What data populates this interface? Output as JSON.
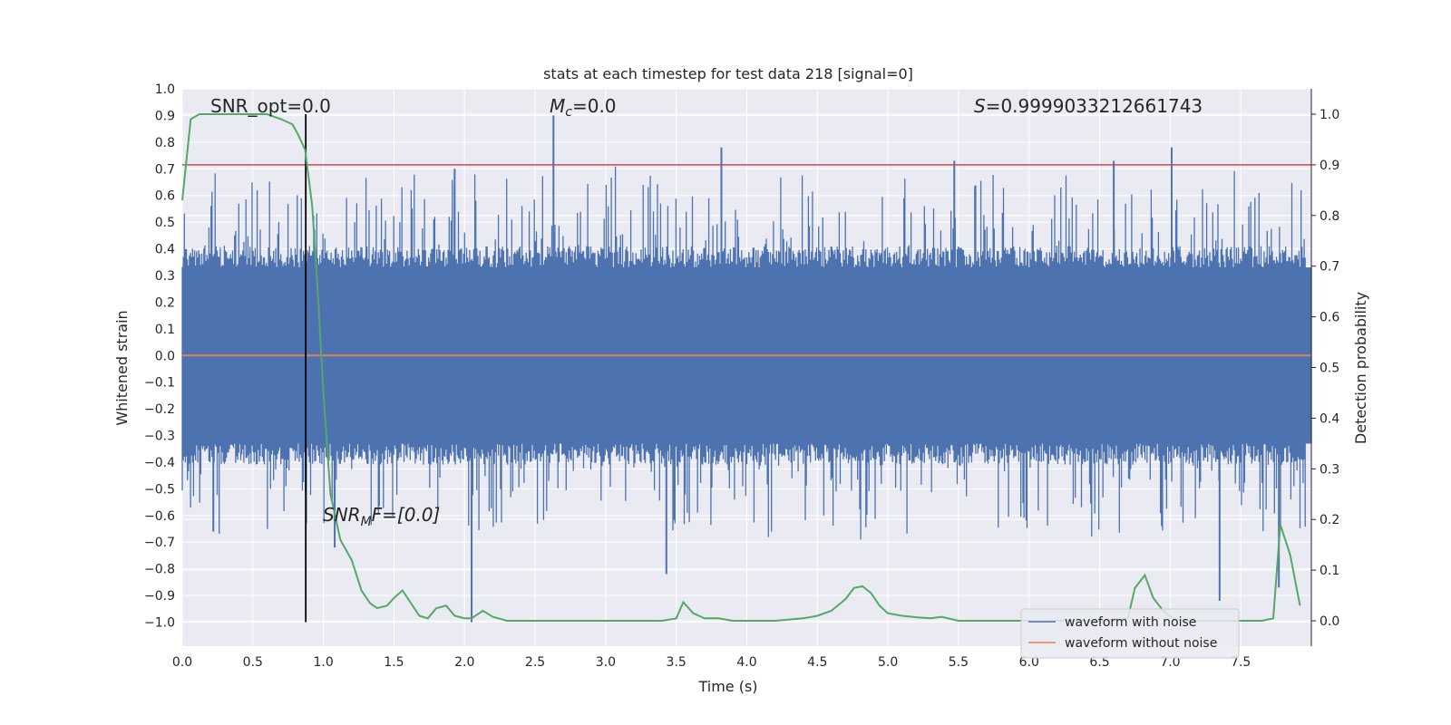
{
  "chart_data": {
    "type": "line",
    "title": "stats at each timestep for test data 218 [signal=0]",
    "xlabel": "Time (s)",
    "ylabel_left": "Whitened strain",
    "ylabel_right": "Detection probability",
    "xlim": [
      0.0,
      8.0
    ],
    "ylim_left": [
      -1.09,
      1.0
    ],
    "ylim_right": [
      -0.05,
      1.05
    ],
    "x_ticks": [
      "0.0",
      "0.5",
      "1.0",
      "1.5",
      "2.0",
      "2.5",
      "3.0",
      "3.5",
      "4.0",
      "4.5",
      "5.0",
      "5.5",
      "6.0",
      "6.5",
      "7.0",
      "7.5"
    ],
    "y_left_ticks": [
      "1.0",
      "0.9",
      "0.8",
      "0.7",
      "0.6",
      "0.5",
      "0.4",
      "0.3",
      "0.2",
      "0.1",
      "0.0",
      "−0.1",
      "−0.2",
      "−0.3",
      "−0.4",
      "−0.5",
      "−0.6",
      "−0.7",
      "−0.8",
      "−0.9",
      "−1.0"
    ],
    "y_right_ticks": [
      "1.0",
      "0.9",
      "0.8",
      "0.7",
      "0.6",
      "0.5",
      "0.4",
      "0.3",
      "0.2",
      "0.1",
      "0.0"
    ],
    "grid": true,
    "legend_position": "bottom-right",
    "colors": {
      "noise": "#4c72b0",
      "clean": "#dd8452",
      "probability": "#55a868",
      "threshold": "#c44e52",
      "marker": "#000000",
      "plot_bg": "#eaeaf2",
      "grid": "#ffffff"
    },
    "annotations": {
      "snr_opt": "SNR_opt=0.0",
      "mc": "=0.0",
      "mc_symbol": "M",
      "mc_sub": "c",
      "score": "=0.9999033212661743",
      "score_symbol": "S",
      "snr_mf_main": "SNR",
      "snr_mf_sub": "M",
      "snr_mf_rest": "F=[0.0]"
    },
    "threshold_probability": 0.9,
    "marker_time": 0.875,
    "series": [
      {
        "name": "waveform with noise",
        "axis": "left",
        "envelope_upper": 0.33,
        "envelope_lower": -0.33,
        "peaks": [
          {
            "x": 2.63,
            "y": 0.9
          },
          {
            "x": 3.82,
            "y": 0.78
          },
          {
            "x": 7.01,
            "y": 0.78
          },
          {
            "x": 1.93,
            "y": 0.7
          },
          {
            "x": 5.47,
            "y": 0.73
          },
          {
            "x": 6.6,
            "y": 0.73
          },
          {
            "x": 2.05,
            "y": -1.0
          },
          {
            "x": 3.43,
            "y": -0.82
          },
          {
            "x": 7.77,
            "y": -0.87
          },
          {
            "x": 7.35,
            "y": -0.92
          },
          {
            "x": 1.08,
            "y": -0.72
          },
          {
            "x": 0.22,
            "y": -0.66
          }
        ]
      },
      {
        "name": "waveform without noise",
        "axis": "left",
        "value": 0.0
      },
      {
        "name": "detection probability",
        "axis": "right",
        "x": [
          0.0,
          0.06,
          0.12,
          0.2,
          0.3,
          0.4,
          0.5,
          0.6,
          0.7,
          0.78,
          0.82,
          0.87,
          0.92,
          0.96,
          1.0,
          1.05,
          1.12,
          1.2,
          1.27,
          1.33,
          1.38,
          1.45,
          1.5,
          1.56,
          1.62,
          1.68,
          1.74,
          1.8,
          1.87,
          1.93,
          2.0,
          2.05,
          2.13,
          2.2,
          2.3,
          2.45,
          2.6,
          2.8,
          3.0,
          3.2,
          3.4,
          3.5,
          3.55,
          3.62,
          3.7,
          3.8,
          3.9,
          4.0,
          4.2,
          4.4,
          4.5,
          4.6,
          4.7,
          4.76,
          4.82,
          4.88,
          4.94,
          5.0,
          5.1,
          5.2,
          5.3,
          5.38,
          5.5,
          5.7,
          6.0,
          6.3,
          6.5,
          6.7,
          6.75,
          6.82,
          6.88,
          6.95,
          7.02,
          7.1,
          7.3,
          7.5,
          7.65,
          7.73,
          7.78,
          7.85,
          7.92
        ],
        "y": [
          0.83,
          0.99,
          1.0,
          1.0,
          1.0,
          1.0,
          1.0,
          1.0,
          0.99,
          0.98,
          0.96,
          0.93,
          0.82,
          0.65,
          0.45,
          0.25,
          0.16,
          0.12,
          0.06,
          0.035,
          0.025,
          0.03,
          0.045,
          0.06,
          0.035,
          0.01,
          0.005,
          0.025,
          0.03,
          0.01,
          0.005,
          0.005,
          0.02,
          0.008,
          0.0,
          0.0,
          0.0,
          0.0,
          0.0,
          0.0,
          0.0,
          0.005,
          0.037,
          0.015,
          0.005,
          0.005,
          0.0,
          0.0,
          0.0,
          0.005,
          0.01,
          0.02,
          0.043,
          0.065,
          0.068,
          0.055,
          0.03,
          0.015,
          0.01,
          0.007,
          0.005,
          0.008,
          0.0,
          0.0,
          0.0,
          0.0,
          0.0,
          0.005,
          0.065,
          0.09,
          0.045,
          0.02,
          0.005,
          0.0,
          0.0,
          0.0,
          0.0,
          0.005,
          0.19,
          0.13,
          0.03
        ]
      }
    ]
  }
}
